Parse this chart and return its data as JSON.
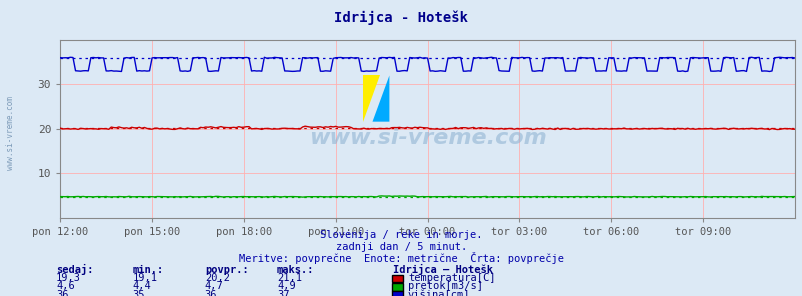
{
  "title": "Idrijca - Hotešk",
  "title_color": "#00008B",
  "bg_color": "#dce9f5",
  "plot_bg_color": "#dce9f5",
  "grid_color": "#ffb0b0",
  "xlim": [
    0,
    288
  ],
  "ylim": [
    0,
    40
  ],
  "yticks": [
    10,
    20,
    30
  ],
  "xtick_labels": [
    "pon 12:00",
    "pon 15:00",
    "pon 18:00",
    "pon 21:00",
    "tor 00:00",
    "tor 03:00",
    "tor 06:00",
    "tor 09:00"
  ],
  "xtick_positions": [
    0,
    36,
    72,
    108,
    144,
    180,
    216,
    252
  ],
  "temp_color": "#cc0000",
  "pretok_color": "#00aa00",
  "visina_color": "#0000cc",
  "temp_avg_value": 20.2,
  "pretok_avg_value": 4.7,
  "visina_avg_value": 36.0,
  "watermark": "www.si-vreme.com",
  "subtitle1": "Slovenija / reke in morje.",
  "subtitle2": "zadnji dan / 5 minut.",
  "subtitle3": "Meritve: povprečne  Enote: metrične  Črta: povprečje",
  "legend_title": "Idrijca – Hotešk",
  "legend_items": [
    {
      "label": "temperatura[C]",
      "color": "#cc0000"
    },
    {
      "label": "pretok[m3/s]",
      "color": "#00aa00"
    },
    {
      "label": "višina[cm]",
      "color": "#0000cc"
    }
  ],
  "stats_headers": [
    "sedaj:",
    "min.:",
    "povpr.:",
    "maks.:"
  ],
  "stats": [
    [
      "19,3",
      "19,1",
      "20,2",
      "21,1"
    ],
    [
      "4,6",
      "4,4",
      "4,7",
      "4,9"
    ],
    [
      "36",
      "35",
      "36",
      "37"
    ]
  ],
  "stats_color": "#000080",
  "subtitle_color": "#0000aa",
  "tick_color": "#555555",
  "border_color": "#888888"
}
